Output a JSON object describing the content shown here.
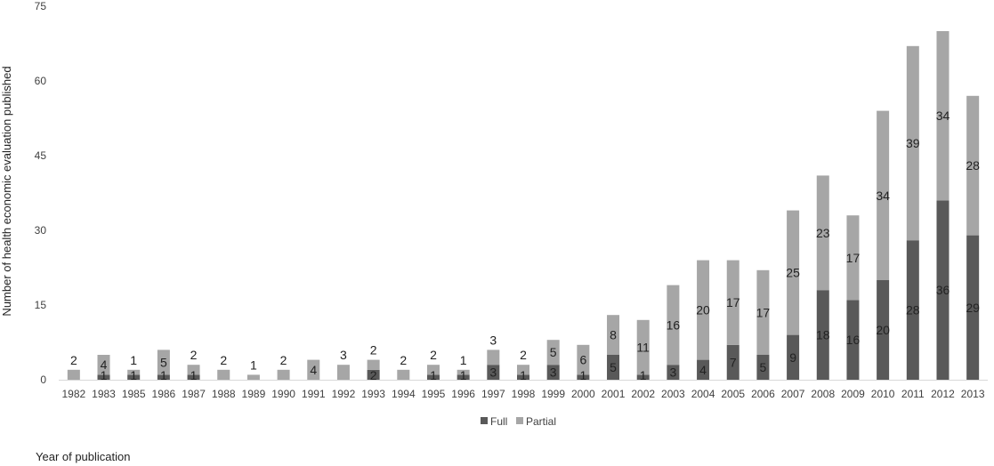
{
  "chart_data": {
    "type": "bar",
    "stacked": true,
    "categories": [
      "1982",
      "1983",
      "1985",
      "1986",
      "1987",
      "1988",
      "1989",
      "1990",
      "1991",
      "1992",
      "1993",
      "1994",
      "1995",
      "1996",
      "1997",
      "1998",
      "1999",
      "2000",
      "2001",
      "2002",
      "2003",
      "2004",
      "2005",
      "2006",
      "2007",
      "2008",
      "2009",
      "2010",
      "2011",
      "2012",
      "2013"
    ],
    "series": [
      {
        "name": "Full",
        "color": "#595959",
        "values": [
          0,
          1,
          1,
          1,
          1,
          0,
          0,
          0,
          0,
          0,
          2,
          0,
          1,
          1,
          3,
          1,
          3,
          1,
          5,
          1,
          3,
          4,
          7,
          5,
          9,
          18,
          16,
          20,
          28,
          36,
          29
        ]
      },
      {
        "name": "Partial",
        "color": "#a6a6a6",
        "values": [
          2,
          4,
          1,
          5,
          2,
          2,
          1,
          2,
          4,
          3,
          2,
          2,
          2,
          1,
          3,
          2,
          5,
          6,
          8,
          11,
          16,
          20,
          17,
          17,
          25,
          23,
          17,
          34,
          39,
          34,
          28
        ]
      }
    ],
    "xlabel": "Year of publication",
    "ylabel": "Number of health economic evaluation published",
    "ylim": [
      0,
      75
    ],
    "yticks": [
      0,
      15,
      30,
      45,
      60,
      75
    ],
    "grid": false,
    "legend_position": "bottom"
  }
}
